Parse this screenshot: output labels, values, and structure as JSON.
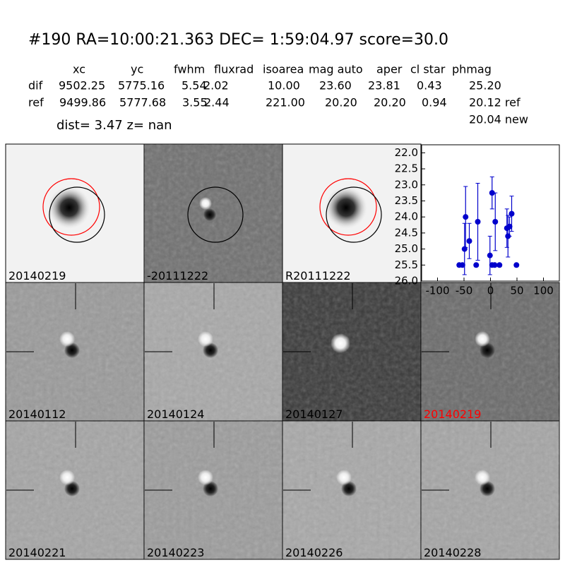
{
  "header": {
    "title": "#190   RA=10:00:21.363 DEC= 1:59:04.97       score=30.0"
  },
  "table": {
    "columns": [
      "xc",
      "yc",
      "fwhm",
      "fluxrad",
      "isoarea",
      "mag auto",
      "aper",
      "cl star",
      "phmag"
    ],
    "rows": [
      [
        "dif",
        "9502.25",
        "5775.16",
        "5.54",
        "2.02",
        "10.00",
        "23.60",
        "23.81",
        "0.43",
        "25.20"
      ],
      [
        "ref",
        "9499.86",
        "5777.68",
        "3.55",
        "2.44",
        "221.00",
        "20.20",
        "20.20",
        "0.94",
        "20.12 ref"
      ]
    ],
    "extra": "20.04 new"
  },
  "dist_line": "dist=  3.47       z=   nan",
  "panels": [
    "20140219",
    "-20111222",
    "R20111222",
    "20140112",
    "20140124",
    "20140127",
    "20140219",
    "20140221",
    "20140223",
    "20140226",
    "20140228"
  ],
  "chart_data": {
    "type": "errorbar",
    "xlim": [
      -130,
      130
    ],
    "xticks": [
      -100,
      -50,
      0,
      50,
      100
    ],
    "ylim": [
      26.0,
      21.75
    ],
    "yticks": [
      {
        "value": 22.0,
        "label": "22.0"
      },
      {
        "value": 22.5,
        "label": "22.5"
      },
      {
        "value": 23.0,
        "label": "23.0"
      },
      {
        "value": 23.5,
        "label": "23.5"
      },
      {
        "value": 24.0,
        "label": "24.0"
      },
      {
        "value": 24.5,
        "label": "24.5"
      },
      {
        "value": 25.0,
        "label": "25.0"
      },
      {
        "value": 25.5,
        "label": "25.5"
      },
      {
        "value": 26.0,
        "label": "26.0"
      }
    ],
    "series": [
      {
        "color": "#0000cc",
        "x": [
          -59,
          -53,
          -49,
          -47,
          -40,
          -27,
          -24,
          -1,
          3,
          3,
          8,
          9,
          17,
          31,
          33,
          36,
          40,
          49
        ],
        "values": [
          25.5,
          25.5,
          25.0,
          24.0,
          24.75,
          25.5,
          24.15,
          25.2,
          23.25,
          25.5,
          25.5,
          24.15,
          25.5,
          24.35,
          24.6,
          24.3,
          23.9,
          25.5
        ],
        "errors": [
          0.05,
          0.05,
          0.8,
          0.95,
          0.55,
          0.05,
          1.2,
          0.6,
          0.5,
          0.05,
          0.05,
          0.9,
          0.05,
          0.6,
          0.65,
          0.3,
          0.55,
          0.05
        ]
      }
    ]
  }
}
